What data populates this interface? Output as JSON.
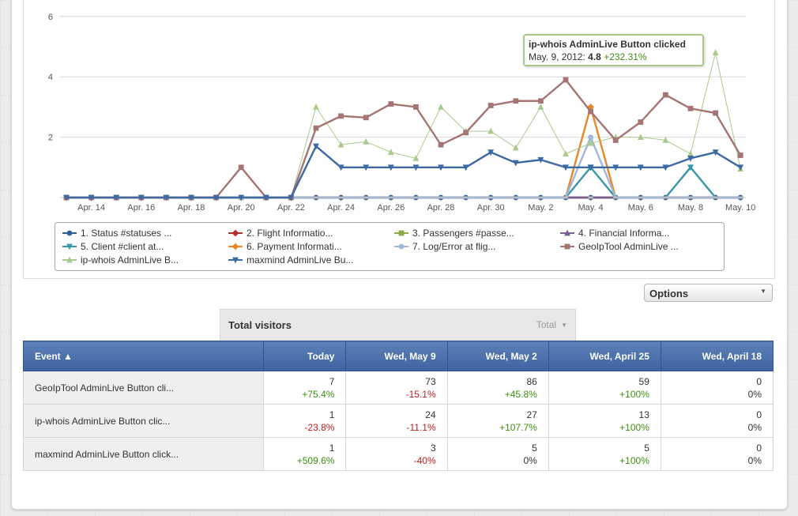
{
  "chart_data": {
    "type": "line",
    "x": [
      "Apr. 13",
      "Apr. 14",
      "Apr. 15",
      "Apr. 16",
      "Apr. 17",
      "Apr. 18",
      "Apr. 19",
      "Apr. 20",
      "Apr. 21",
      "Apr. 22",
      "Apr. 23",
      "Apr. 24",
      "Apr. 25",
      "Apr. 26",
      "Apr. 27",
      "Apr. 28",
      "Apr. 29",
      "Apr. 30",
      "May. 1",
      "May. 2",
      "May. 3",
      "May. 4",
      "May. 5",
      "May. 6",
      "May. 7",
      "May. 8",
      "May. 9",
      "May. 10"
    ],
    "x_tick_labels": [
      "Apr. 14",
      "Apr. 16",
      "Apr. 18",
      "Apr. 20",
      "Apr. 22",
      "Apr. 24",
      "Apr. 26",
      "Apr. 28",
      "Apr. 30",
      "May. 2",
      "May. 4",
      "May. 6",
      "May. 8",
      "May. 10"
    ],
    "y_tick_labels": [
      "2",
      "4",
      "6"
    ],
    "ylim": [
      0,
      6.2
    ],
    "grid": true,
    "series": [
      {
        "name": "1. Status #statuses ...",
        "color": "#2f5f98",
        "marker": "circle",
        "values": [
          0,
          0,
          0,
          0,
          0,
          0,
          0,
          0,
          0,
          0,
          0,
          0,
          0,
          0,
          0,
          0,
          0,
          0,
          0,
          0,
          0,
          0,
          0,
          0,
          0,
          0,
          0,
          0
        ]
      },
      {
        "name": "2. Flight Informatio...",
        "color": "#b42d2d",
        "marker": "diamond",
        "values": [
          0,
          0,
          0,
          0,
          0,
          0,
          0,
          0,
          0,
          0,
          0,
          0,
          0,
          0,
          0,
          0,
          0,
          0,
          0,
          0,
          0,
          0,
          0,
          0,
          0,
          0,
          0,
          0
        ]
      },
      {
        "name": "3. Passengers #passe...",
        "color": "#8cac4a",
        "marker": "square",
        "values": [
          0,
          0,
          0,
          0,
          0,
          0,
          0,
          0,
          0,
          0,
          0,
          0,
          0,
          0,
          0,
          0,
          0,
          0,
          0,
          0,
          0,
          0,
          0,
          0,
          0,
          0,
          0,
          0
        ]
      },
      {
        "name": "4. Financial Informa...",
        "color": "#7a5e96",
        "marker": "triangle-up",
        "values": [
          0,
          0,
          0,
          0,
          0,
          0,
          0,
          0,
          0,
          0,
          0,
          0,
          0,
          0,
          0,
          0,
          0,
          0,
          0,
          0,
          0,
          0,
          0,
          0,
          0,
          0,
          0,
          0
        ]
      },
      {
        "name": "5. Client #client at...",
        "color": "#3a96aa",
        "marker": "triangle-down",
        "values": [
          0,
          0,
          0,
          0,
          0,
          0,
          0,
          0,
          0,
          0,
          0,
          0,
          0,
          0,
          0,
          0,
          0,
          0,
          0,
          0,
          0,
          1,
          0,
          0,
          0,
          1,
          0,
          0
        ]
      },
      {
        "name": "6. Payment Informati...",
        "color": "#e8862a",
        "marker": "diamond",
        "values": [
          0,
          0,
          0,
          0,
          0,
          0,
          0,
          0,
          0,
          0,
          0,
          0,
          0,
          0,
          0,
          0,
          0,
          0,
          0,
          0,
          0,
          3,
          0,
          0,
          0,
          0,
          0,
          0
        ]
      },
      {
        "name": "7. Log/Error at flig...",
        "color": "#9fb8dc",
        "marker": "circle",
        "values": [
          0,
          0,
          0,
          0,
          0,
          0,
          0,
          0,
          0,
          0,
          0,
          0,
          0,
          0,
          0,
          0,
          0,
          0,
          0,
          0,
          0,
          2,
          0,
          0,
          0,
          0,
          0,
          0
        ]
      },
      {
        "name": "GeoIpTool AdminLive ...",
        "color": "#a57473",
        "marker": "square",
        "values": [
          0,
          0,
          0,
          0,
          0,
          0,
          0,
          1,
          0,
          0,
          2.3,
          2.7,
          2.65,
          3.1,
          3.0,
          1.75,
          2.15,
          3.05,
          3.2,
          3.2,
          3.9,
          2.85,
          1.9,
          2.5,
          3.4,
          2.95,
          2.8,
          1.4
        ]
      },
      {
        "name": "ip-whois AdminLive B...",
        "color": "#a9ca8f",
        "marker": "triangle-up",
        "values": [
          0,
          0,
          0,
          0,
          0,
          0,
          0,
          0,
          0,
          0,
          3.0,
          1.75,
          1.85,
          1.5,
          1.3,
          3.0,
          2.2,
          2.2,
          1.65,
          3.0,
          1.45,
          1.8,
          2.0,
          2.0,
          1.9,
          1.45,
          4.8,
          0.95
        ]
      },
      {
        "name": "maxmind AdminLive Bu...",
        "color": "#3e6aa3",
        "marker": "triangle-down",
        "values": [
          0,
          0,
          0,
          0,
          0,
          0,
          0,
          0,
          0,
          0,
          1.7,
          1.0,
          1.0,
          1.0,
          1.0,
          1.0,
          1.0,
          1.5,
          1.15,
          1.25,
          1.0,
          1.0,
          1.0,
          1.0,
          1.0,
          1.3,
          1.5,
          1.0
        ]
      }
    ]
  },
  "tooltip": {
    "title": "ip-whois AdminLive Button clicked",
    "date": "May. 9, 2012:",
    "value": "4.8",
    "change": "+232.31%"
  },
  "options": {
    "label": "Options"
  },
  "total_visitors": {
    "title": "Total visitors",
    "select_value": "Total"
  },
  "table": {
    "headers": [
      "Event ▲",
      "Today",
      "Wed, May 9",
      "Wed, May 2",
      "Wed, April 25",
      "Wed, April 18"
    ],
    "rows": [
      {
        "event": "GeoIpTool AdminLive Button cli...",
        "cells": [
          {
            "value": "7",
            "change": "+75.4%",
            "sign": "pos"
          },
          {
            "value": "73",
            "change": "-15.1%",
            "sign": "neg"
          },
          {
            "value": "86",
            "change": "+45.8%",
            "sign": "pos"
          },
          {
            "value": "59",
            "change": "+100%",
            "sign": "pos"
          },
          {
            "value": "0",
            "change": "0%",
            "sign": "zero"
          }
        ]
      },
      {
        "event": "ip-whois AdminLive Button clic...",
        "cells": [
          {
            "value": "1",
            "change": "-23.8%",
            "sign": "neg"
          },
          {
            "value": "24",
            "change": "-11.1%",
            "sign": "neg"
          },
          {
            "value": "27",
            "change": "+107.7%",
            "sign": "pos"
          },
          {
            "value": "13",
            "change": "+100%",
            "sign": "pos"
          },
          {
            "value": "0",
            "change": "0%",
            "sign": "zero"
          }
        ]
      },
      {
        "event": "maxmind AdminLive Button click...",
        "cells": [
          {
            "value": "1",
            "change": "+509.6%",
            "sign": "pos"
          },
          {
            "value": "3",
            "change": "-40%",
            "sign": "neg"
          },
          {
            "value": "5",
            "change": "0%",
            "sign": "zero"
          },
          {
            "value": "5",
            "change": "+100%",
            "sign": "pos"
          },
          {
            "value": "0",
            "change": "0%",
            "sign": "zero"
          }
        ]
      }
    ]
  }
}
